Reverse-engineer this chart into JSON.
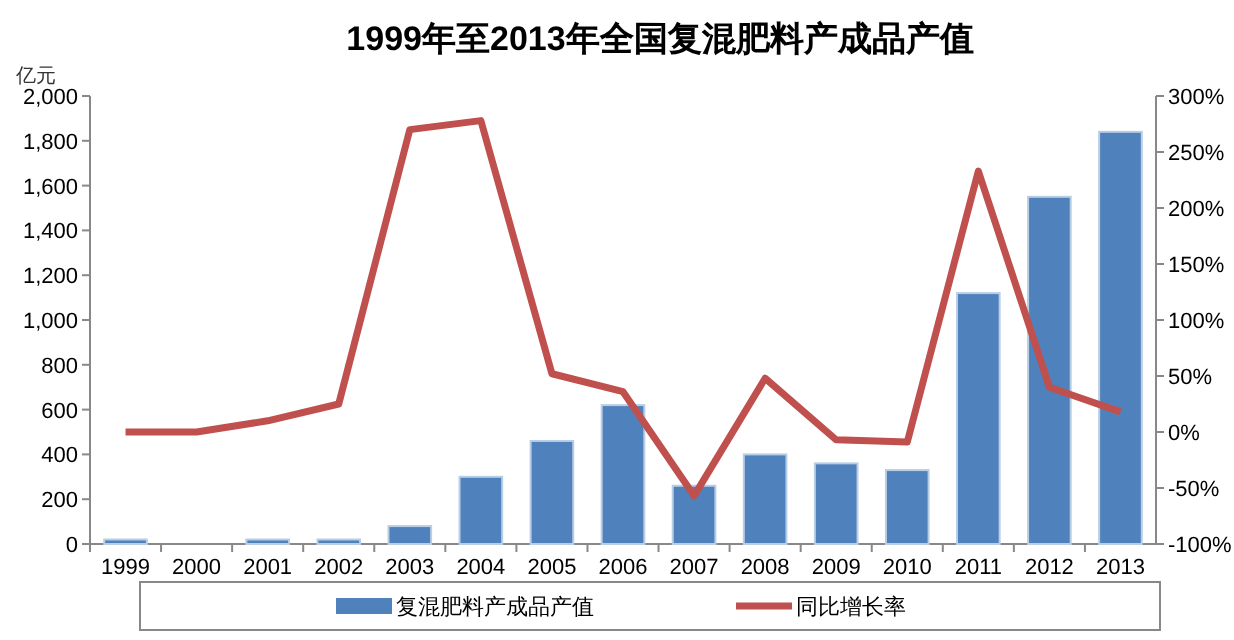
{
  "chart_data": {
    "type": "bar",
    "title": "1999年至2013年全国复混肥料产成品产值",
    "ylabel": "亿元",
    "categories": [
      "1999",
      "2000",
      "2001",
      "2002",
      "2003",
      "2004",
      "2005",
      "2006",
      "2007",
      "2008",
      "2009",
      "2010",
      "2011",
      "2012",
      "2013"
    ],
    "series": [
      {
        "name": "复混肥料产成品产值",
        "color": "#4f81bd",
        "values": [
          20,
          0,
          20,
          20,
          80,
          300,
          460,
          620,
          260,
          400,
          360,
          330,
          1120,
          1550,
          1840
        ]
      },
      {
        "name": "同比增长率",
        "type": "line",
        "axis": "y2",
        "color": "#c0504d",
        "values": [
          0,
          0,
          10,
          25,
          270,
          278,
          52,
          36,
          -57,
          48,
          -7,
          -9,
          233,
          40,
          18
        ]
      }
    ],
    "ylim": [
      0,
      2000
    ],
    "yticks": [
      0,
      200,
      400,
      600,
      800,
      {
        "value": 1000,
        "label": "1,000"
      },
      {
        "value": 1200,
        "label": "1,200"
      },
      {
        "value": 1400,
        "label": "1,400"
      },
      {
        "value": 1600,
        "label": "1,600"
      },
      {
        "value": 1800,
        "label": "1,800"
      },
      {
        "value": 2000,
        "label": "2,000"
      }
    ],
    "y2lim": [
      -100,
      300
    ],
    "y2ticks": [
      {
        "value": -100,
        "label": "-100%"
      },
      {
        "value": -50,
        "label": "-50%"
      },
      {
        "value": 0,
        "label": "0%"
      },
      {
        "value": 50,
        "label": "50%"
      },
      {
        "value": 100,
        "label": "100%"
      },
      {
        "value": 150,
        "label": "150%"
      },
      {
        "value": 200,
        "label": "200%"
      },
      {
        "value": 250,
        "label": "250%"
      },
      {
        "value": 300,
        "label": "300%"
      }
    ],
    "legend": "bottom",
    "grid": false
  }
}
